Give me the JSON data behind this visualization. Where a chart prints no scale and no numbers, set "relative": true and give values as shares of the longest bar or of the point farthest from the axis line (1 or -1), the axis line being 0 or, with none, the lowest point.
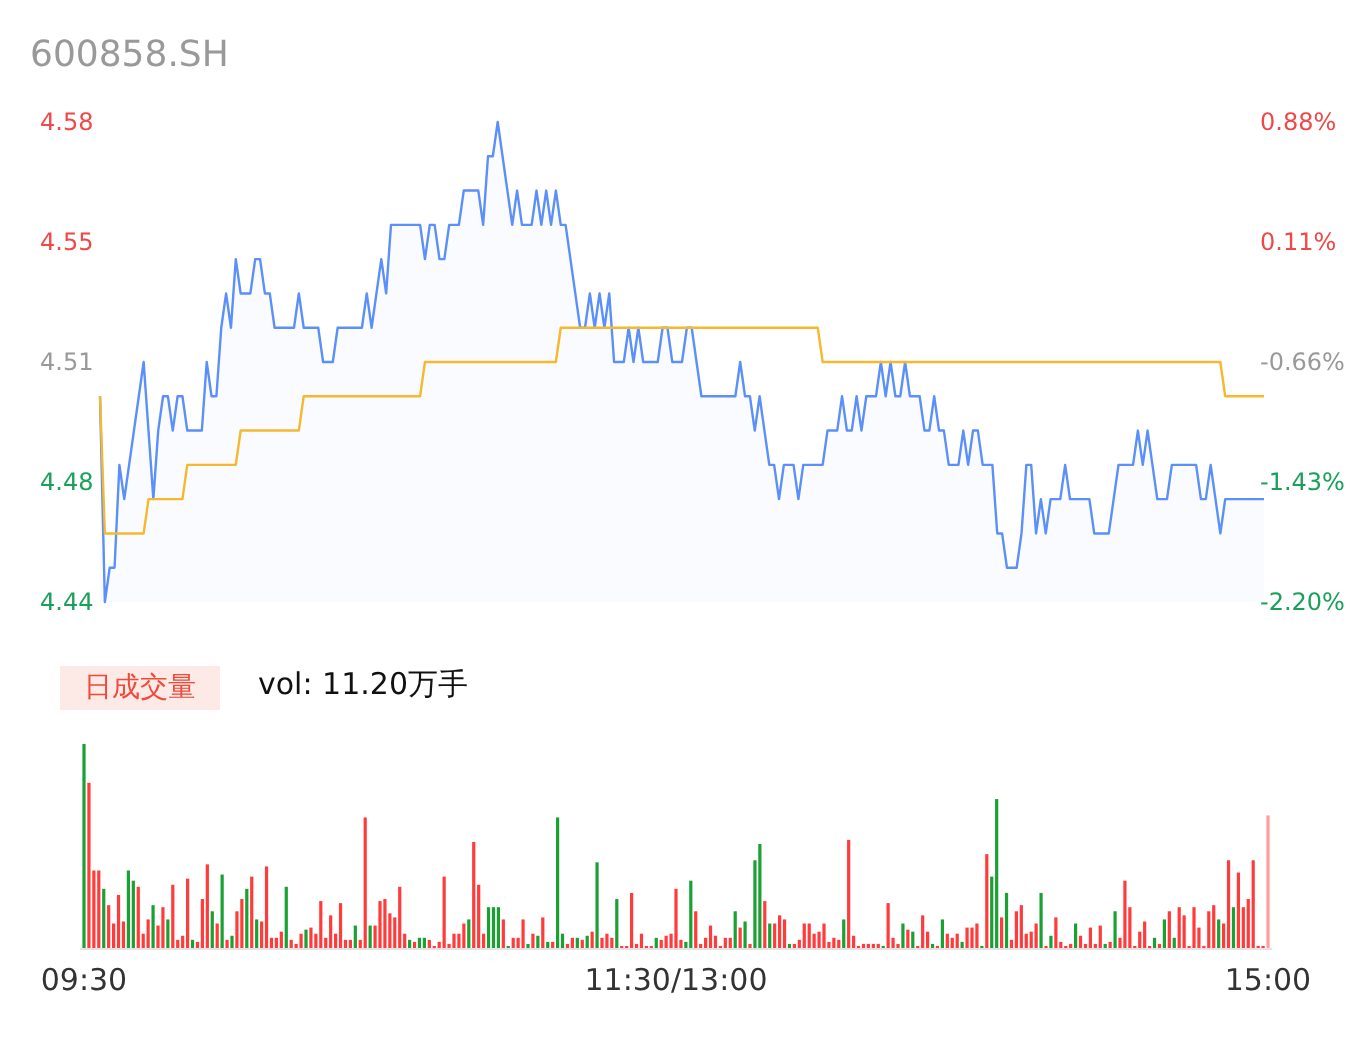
{
  "chart_data": [
    {
      "type": "area",
      "title": "600858.SH",
      "ylim": [
        4.44,
        4.58
      ],
      "yticks": [
        4.44,
        {
          "value": 4.475,
          "label": "4.48"
        },
        4.51,
        {
          "value": 4.545,
          "label": "4.55"
        },
        4.58
      ],
      "y2lim": [
        -2.2,
        0.88
      ],
      "y2ticks": [
        {
          "value": -2.2,
          "label": "-2.20%"
        },
        {
          "value": -1.43,
          "label": "-1.43%"
        },
        {
          "value": -0.66,
          "label": "-0.66%"
        },
        {
          "value": 0.11,
          "label": "0.11%"
        },
        {
          "value": 0.88,
          "label": "0.88%"
        }
      ],
      "tick_labels": "y",
      "categories": [
        null,
        null,
        null,
        null,
        null,
        null,
        null,
        null,
        null,
        null,
        null,
        null,
        null,
        null,
        null,
        null,
        null,
        null,
        null,
        null,
        null,
        null,
        null,
        null,
        null,
        null,
        null,
        null,
        null,
        null,
        null,
        null,
        null,
        null,
        null,
        null,
        null,
        null,
        null,
        null,
        null,
        null,
        null,
        null,
        null,
        null,
        null,
        null,
        null,
        null,
        null,
        null,
        null,
        null,
        null,
        null,
        null,
        null,
        null,
        null,
        null,
        null,
        null,
        null,
        null,
        null,
        null,
        null,
        null,
        null,
        null,
        null,
        null,
        null,
        null,
        null,
        null,
        null,
        null,
        null,
        null,
        null,
        null,
        null,
        null,
        null,
        null,
        null,
        null,
        null,
        null,
        null,
        null,
        null,
        null,
        null,
        null,
        null,
        null,
        null,
        null,
        null,
        null,
        null,
        null,
        null,
        null,
        null,
        null,
        null,
        null,
        null,
        null,
        null,
        null,
        null,
        null,
        null,
        null,
        null,
        null,
        null,
        null,
        null,
        null,
        null,
        null,
        null,
        null,
        null,
        null,
        null,
        null,
        null,
        null,
        null,
        null,
        null,
        null,
        null,
        null,
        null,
        null,
        null,
        null,
        null,
        null,
        null,
        null,
        null,
        null,
        null,
        null,
        null,
        null,
        null,
        null,
        null,
        null,
        null,
        null,
        null,
        null,
        null,
        null,
        null,
        null,
        null,
        null,
        null,
        null,
        null,
        null,
        null,
        null,
        null,
        null,
        null,
        null,
        null,
        null,
        null,
        null,
        null,
        null,
        null,
        null,
        null,
        null,
        null,
        null,
        null,
        null,
        null,
        null,
        null,
        null,
        null,
        null,
        null,
        null,
        null,
        null,
        null,
        null,
        null,
        null,
        null,
        null,
        null,
        null,
        null,
        null,
        null,
        null,
        null,
        null,
        null,
        null,
        null,
        null,
        null,
        null,
        null,
        null,
        null,
        null,
        null,
        null,
        null,
        null,
        null,
        null,
        null,
        null,
        null,
        null,
        null,
        null,
        null,
        null
      ],
      "series": [
        {
          "type": "area",
          "color": "#5b8ff9",
          "values": [
            4.5,
            4.44,
            4.45,
            4.45,
            4.48,
            4.47,
            4.48,
            4.49,
            4.5,
            4.51,
            4.49,
            4.47,
            4.49,
            4.5,
            4.5,
            4.49,
            4.5,
            4.5,
            4.49,
            4.49,
            4.49,
            4.49,
            4.51,
            4.5,
            4.5,
            4.52,
            4.53,
            4.52,
            4.54,
            4.53,
            4.53,
            4.53,
            4.54,
            4.54,
            4.53,
            4.53,
            4.52,
            4.52,
            4.52,
            4.52,
            4.52,
            4.53,
            4.52,
            4.52,
            4.52,
            4.52,
            4.51,
            4.51,
            4.51,
            4.52,
            4.52,
            4.52,
            4.52,
            4.52,
            4.52,
            4.53,
            4.52,
            4.53,
            4.54,
            4.53,
            4.55,
            4.55,
            4.55,
            4.55,
            4.55,
            4.55,
            4.55,
            4.54,
            4.55,
            4.55,
            4.54,
            4.54,
            4.55,
            4.55,
            4.55,
            4.56,
            4.56,
            4.56,
            4.56,
            4.55,
            4.57,
            4.57,
            4.58,
            4.57,
            4.56,
            4.55,
            4.56,
            4.55,
            4.55,
            4.55,
            4.56,
            4.55,
            4.56,
            4.55,
            4.56,
            4.55,
            4.55,
            4.54,
            4.53,
            4.52,
            4.52,
            4.53,
            4.52,
            4.53,
            4.52,
            4.53,
            4.51,
            4.51,
            4.51,
            4.52,
            4.51,
            4.52,
            4.51,
            4.51,
            4.51,
            4.51,
            4.52,
            4.52,
            4.51,
            4.51,
            4.51,
            4.52,
            4.52,
            4.51,
            4.5,
            4.5,
            4.5,
            4.5,
            4.5,
            4.5,
            4.5,
            4.5,
            4.51,
            4.5,
            4.5,
            4.49,
            4.5,
            4.49,
            4.48,
            4.48,
            4.47,
            4.48,
            4.48,
            4.48,
            4.47,
            4.48,
            4.48,
            4.48,
            4.48,
            4.48,
            4.49,
            4.49,
            4.49,
            4.5,
            4.49,
            4.49,
            4.5,
            4.49,
            4.5,
            4.5,
            4.5,
            4.51,
            4.5,
            4.51,
            4.5,
            4.5,
            4.51,
            4.5,
            4.5,
            4.5,
            4.49,
            4.49,
            4.5,
            4.49,
            4.49,
            4.48,
            4.48,
            4.48,
            4.49,
            4.48,
            4.49,
            4.49,
            4.48,
            4.48,
            4.48,
            4.46,
            4.46,
            4.45,
            4.45,
            4.45,
            4.46,
            4.48,
            4.48,
            4.46,
            4.47,
            4.46,
            4.47,
            4.47,
            4.47,
            4.48,
            4.47,
            4.47,
            4.47,
            4.47,
            4.47,
            4.46,
            4.46,
            4.46,
            4.46,
            4.47,
            4.48,
            4.48,
            4.48,
            4.48,
            4.49,
            4.48,
            4.49,
            4.48,
            4.47,
            4.47,
            4.47,
            4.48,
            4.48,
            4.48,
            4.48,
            4.48,
            4.48,
            4.47,
            4.47,
            4.48,
            4.47,
            4.46,
            4.47,
            4.47,
            4.47,
            4.47,
            4.47,
            4.47,
            4.47,
            4.47,
            4.47
          ]
        },
        {
          "type": "line",
          "color": "#f5b82e",
          "values": [
            4.5,
            4.46,
            4.46,
            4.46,
            4.46,
            4.46,
            4.46,
            4.46,
            4.46,
            4.46,
            4.47,
            4.47,
            4.47,
            4.47,
            4.47,
            4.47,
            4.47,
            4.47,
            4.48,
            4.48,
            4.48,
            4.48,
            4.48,
            4.48,
            4.48,
            4.48,
            4.48,
            4.48,
            4.48,
            4.49,
            4.49,
            4.49,
            4.49,
            4.49,
            4.49,
            4.49,
            4.49,
            4.49,
            4.49,
            4.49,
            4.49,
            4.49,
            4.5,
            4.5,
            4.5,
            4.5,
            4.5,
            4.5,
            4.5,
            4.5,
            4.5,
            4.5,
            4.5,
            4.5,
            4.5,
            4.5,
            4.5,
            4.5,
            4.5,
            4.5,
            4.5,
            4.5,
            4.5,
            4.5,
            4.5,
            4.5,
            4.5,
            4.51,
            4.51,
            4.51,
            4.51,
            4.51,
            4.51,
            4.51,
            4.51,
            4.51,
            4.51,
            4.51,
            4.51,
            4.51,
            4.51,
            4.51,
            4.51,
            4.51,
            4.51,
            4.51,
            4.51,
            4.51,
            4.51,
            4.51,
            4.51,
            4.51,
            4.51,
            4.51,
            4.51,
            4.52,
            4.52,
            4.52,
            4.52,
            4.52,
            4.52,
            4.52,
            4.52,
            4.52,
            4.52,
            4.52,
            4.52,
            4.52,
            4.52,
            4.52,
            4.52,
            4.52,
            4.52,
            4.52,
            4.52,
            4.52,
            4.52,
            4.52,
            4.52,
            4.52,
            4.52,
            4.52,
            4.52,
            4.52,
            4.52,
            4.52,
            4.52,
            4.52,
            4.52,
            4.52,
            4.52,
            4.52,
            4.52,
            4.52,
            4.52,
            4.52,
            4.52,
            4.52,
            4.52,
            4.52,
            4.52,
            4.52,
            4.52,
            4.52,
            4.52,
            4.52,
            4.52,
            4.52,
            4.52,
            4.51,
            4.51,
            4.51,
            4.51,
            4.51,
            4.51,
            4.51,
            4.51,
            4.51,
            4.51,
            4.51,
            4.51,
            4.51,
            4.51,
            4.51,
            4.51,
            4.51,
            4.51,
            4.51,
            4.51,
            4.51,
            4.51,
            4.51,
            4.51,
            4.51,
            4.51,
            4.51,
            4.51,
            4.51,
            4.51,
            4.51,
            4.51,
            4.51,
            4.51,
            4.51,
            4.51,
            4.51,
            4.51,
            4.51,
            4.51,
            4.51,
            4.51,
            4.51,
            4.51,
            4.51,
            4.51,
            4.51,
            4.51,
            4.51,
            4.51,
            4.51,
            4.51,
            4.51,
            4.51,
            4.51,
            4.51,
            4.51,
            4.51,
            4.51,
            4.51,
            4.51,
            4.51,
            4.51,
            4.51,
            4.51,
            4.51,
            4.51,
            4.51,
            4.51,
            4.51,
            4.51,
            4.51,
            4.51,
            4.51,
            4.51,
            4.51,
            4.51,
            4.51,
            4.51,
            4.51,
            4.51,
            4.51,
            4.51,
            4.5,
            4.5,
            4.5,
            4.5,
            4.5,
            4.5,
            4.5,
            4.5,
            4.5
          ]
        }
      ]
    },
    {
      "type": "bar",
      "title": "日成交量",
      "subtitle": "vol: 11.20万手",
      "relative": true,
      "categories": [
        "09:30",
        null,
        null,
        null,
        null,
        null,
        null,
        null,
        null,
        null,
        null,
        null,
        null,
        null,
        null,
        null,
        null,
        null,
        null,
        null,
        null,
        null,
        null,
        null,
        null,
        null,
        null,
        null,
        null,
        null,
        null,
        null,
        null,
        null,
        null,
        null,
        null,
        null,
        null,
        null,
        null,
        null,
        null,
        null,
        null,
        null,
        null,
        null,
        null,
        null,
        null,
        null,
        null,
        null,
        null,
        null,
        null,
        null,
        null,
        null,
        null,
        null,
        null,
        null,
        null,
        null,
        null,
        null,
        null,
        null,
        null,
        null,
        null,
        null,
        null,
        null,
        null,
        null,
        null,
        null,
        null,
        null,
        null,
        null,
        null,
        null,
        null,
        null,
        null,
        null,
        null,
        null,
        null,
        null,
        null,
        null,
        null,
        null,
        null,
        null,
        null,
        null,
        null,
        null,
        null,
        null,
        null,
        null,
        null,
        null,
        null,
        null,
        null,
        null,
        null,
        null,
        null,
        null,
        null,
        null,
        "11:30/13:00",
        null,
        null,
        null,
        null,
        null,
        null,
        null,
        null,
        null,
        null,
        null,
        null,
        null,
        null,
        null,
        null,
        null,
        null,
        null,
        null,
        null,
        null,
        null,
        null,
        null,
        null,
        null,
        null,
        null,
        null,
        null,
        null,
        null,
        null,
        null,
        null,
        null,
        null,
        null,
        null,
        null,
        null,
        null,
        null,
        null,
        null,
        null,
        null,
        null,
        null,
        null,
        null,
        null,
        null,
        null,
        null,
        null,
        null,
        null,
        null,
        null,
        null,
        null,
        null,
        null,
        null,
        null,
        null,
        null,
        null,
        null,
        null,
        null,
        null,
        null,
        null,
        null,
        null,
        null,
        null,
        null,
        null,
        null,
        null,
        null,
        null,
        null,
        null,
        null,
        null,
        null,
        null,
        null,
        null,
        null,
        null,
        null,
        null,
        null,
        null,
        null,
        null,
        null,
        null,
        null,
        null,
        null,
        null,
        null,
        null,
        null,
        null,
        null,
        null,
        null,
        null,
        null,
        null,
        null,
        "15:00"
      ],
      "values": [
        1.0,
        0.81,
        0.38,
        0.38,
        0.29,
        0.21,
        0.12,
        0.26,
        0.13,
        0.38,
        0.33,
        0.3,
        0.07,
        0.14,
        0.21,
        0.11,
        0.2,
        0.14,
        0.31,
        0.04,
        0.06,
        0.34,
        0.04,
        0.03,
        0.24,
        0.41,
        0.18,
        0.12,
        0.36,
        0.04,
        0.06,
        0.18,
        0.24,
        0.29,
        0.35,
        0.14,
        0.13,
        0.4,
        0.05,
        0.05,
        0.08,
        0.3,
        0.04,
        0.02,
        0.07,
        0.09,
        0.1,
        0.07,
        0.23,
        0.05,
        0.16,
        0.07,
        0.22,
        0.04,
        0.04,
        0.11,
        0.04,
        0.64,
        0.11,
        0.11,
        0.23,
        0.24,
        0.17,
        0.15,
        0.3,
        0.07,
        0.04,
        0.03,
        0.05,
        0.05,
        0.04,
        0.01,
        0.03,
        0.35,
        0.02,
        0.07,
        0.07,
        0.12,
        0.14,
        0.52,
        0.31,
        0.07,
        0.2,
        0.2,
        0.2,
        0.14,
        0.01,
        0.05,
        0.05,
        0.14,
        0.02,
        0.07,
        0.06,
        0.15,
        0.03,
        0.03,
        0.64,
        0.07,
        0.02,
        0.05,
        0.05,
        0.04,
        0.06,
        0.08,
        0.42,
        0.05,
        0.07,
        0.05,
        0.24,
        0.01,
        0.01,
        0.27,
        0.02,
        0.07,
        0.01,
        0.01,
        0.05,
        0.04,
        0.06,
        0.07,
        0.29,
        0.04,
        0.03,
        0.33,
        0.18,
        0.02,
        0.05,
        0.11,
        0.06,
        0.01,
        0.05,
        0.05,
        0.18,
        0.1,
        0.13,
        0.02,
        0.43,
        0.51,
        0.23,
        0.12,
        0.12,
        0.16,
        0.14,
        0.02,
        0.02,
        0.04,
        0.12,
        0.12,
        0.07,
        0.08,
        0.12,
        0.03,
        0.05,
        0.04,
        0.14,
        0.53,
        0.06,
        0.01,
        0.02,
        0.02,
        0.02,
        0.02,
        0.01,
        0.22,
        0.05,
        0.02,
        0.12,
        0.09,
        0.08,
        0.01,
        0.16,
        0.08,
        0.02,
        0.01,
        0.14,
        0.07,
        0.05,
        0.07,
        0.03,
        0.1,
        0.1,
        0.12,
        0.01,
        0.46,
        0.35,
        0.73,
        0.15,
        0.27,
        0.04,
        0.18,
        0.21,
        0.07,
        0.08,
        0.12,
        0.27,
        0.01,
        0.06,
        0.15,
        0.03,
        0.01,
        0.02,
        0.12,
        0.06,
        0.02,
        0.1,
        0.02,
        0.11,
        0.02,
        0.03,
        0.18,
        0.05,
        0.33,
        0.2,
        0.01,
        0.08,
        0.13,
        0.01,
        0.05,
        0.02,
        0.14,
        0.18,
        0.05,
        0.2,
        0.16,
        0.01,
        0.2,
        0.1,
        0.01,
        0.18,
        0.21,
        0.14,
        0.12,
        0.43,
        0.2,
        0.37,
        0.2,
        0.24,
        0.43,
        0.01,
        0.01,
        0.65
      ],
      "colors": [
        "#1aa033",
        "#ff3b3b",
        "#ff3b3b",
        "#ff3b3b",
        "#1aa033",
        "#ff3b3b",
        "#ff3b3b",
        "#ff3b3b",
        "#ff3b3b",
        "#1aa033",
        "#1aa033",
        "#ff3b3b",
        "#ff3b3b",
        "#ff3b3b",
        "#1aa033",
        "#ff3b3b",
        "#ff3b3b",
        "#1aa033",
        "#ff3b3b",
        "#ff3b3b",
        "#ff3b3b",
        "#ff3b3b",
        "#1aa033",
        "#ff3b3b",
        "#ff3b3b",
        "#ff3b3b",
        "#1aa033",
        "#ff3b3b",
        "#1aa033",
        "#ff3b3b",
        "#1aa033",
        "#ff3b3b",
        "#ff3b3b",
        "#1aa033",
        "#ff3b3b",
        "#1aa033",
        "#ff3b3b",
        "#ff3b3b",
        "#ff3b3b",
        "#ff3b3b",
        "#ff3b3b",
        "#1aa033",
        "#ff3b3b",
        "#ff3b3b",
        "#ff3b3b",
        "#1aa033",
        "#ff3b3b",
        "#ff3b3b",
        "#ff3b3b",
        "#ff3b3b",
        "#ff3b3b",
        "#ff3b3b",
        "#ff3b3b",
        "#ff3b3b",
        "#ff3b3b",
        "#1aa033",
        "#ff3b3b",
        "#ff3b3b",
        "#1aa033",
        "#ff3b3b",
        "#ff3b3b",
        "#ff3b3b",
        "#ff3b3b",
        "#ff3b3b",
        "#ff3b3b",
        "#ff3b3b",
        "#1aa033",
        "#ff3b3b",
        "#1aa033",
        "#1aa033",
        "#ff3b3b",
        "#ff3b3b",
        "#ff3b3b",
        "#ff3b3b",
        "#ff3b3b",
        "#ff3b3b",
        "#ff3b3b",
        "#ff3b3b",
        "#1aa033",
        "#ff3b3b",
        "#ff3b3b",
        "#ff3b3b",
        "#1aa033",
        "#1aa033",
        "#1aa033",
        "#ff3b3b",
        "#1aa033",
        "#ff3b3b",
        "#ff3b3b",
        "#ff3b3b",
        "#1aa033",
        "#ff3b3b",
        "#1aa033",
        "#ff3b3b",
        "#1aa033",
        "#ff3b3b",
        "#1aa033",
        "#1aa033",
        "#ff3b3b",
        "#ff3b3b",
        "#1aa033",
        "#ff3b3b",
        "#1aa033",
        "#ff3b3b",
        "#1aa033",
        "#ff3b3b",
        "#ff3b3b",
        "#ff3b3b",
        "#1aa033",
        "#ff3b3b",
        "#ff3b3b",
        "#ff3b3b",
        "#ff3b3b",
        "#ff3b3b",
        "#ff3b3b",
        "#ff3b3b",
        "#1aa033",
        "#ff3b3b",
        "#ff3b3b",
        "#ff3b3b",
        "#ff3b3b",
        "#ff3b3b",
        "#1aa033",
        "#1aa033",
        "#ff3b3b",
        "#ff3b3b",
        "#ff3b3b",
        "#ff3b3b",
        "#ff3b3b",
        "#ff3b3b",
        "#ff3b3b",
        "#ff3b3b",
        "#1aa033",
        "#ff3b3b",
        "#1aa033",
        "#ff3b3b",
        "#1aa033",
        "#1aa033",
        "#ff3b3b",
        "#1aa033",
        "#ff3b3b",
        "#ff3b3b",
        "#ff3b3b",
        "#1aa033",
        "#ff3b3b",
        "#ff3b3b",
        "#ff3b3b",
        "#ff3b3b",
        "#ff3b3b",
        "#ff3b3b",
        "#ff3b3b",
        "#ff3b3b",
        "#ff3b3b",
        "#ff3b3b",
        "#1aa033",
        "#ff3b3b",
        "#ff3b3b",
        "#ff3b3b",
        "#ff3b3b",
        "#ff3b3b",
        "#ff3b3b",
        "#ff3b3b",
        "#1aa033",
        "#ff3b3b",
        "#ff3b3b",
        "#ff3b3b",
        "#1aa033",
        "#ff3b3b",
        "#1aa033",
        "#ff3b3b",
        "#ff3b3b",
        "#ff3b3b",
        "#1aa033",
        "#ff3b3b",
        "#1aa033",
        "#ff3b3b",
        "#ff3b3b",
        "#ff3b3b",
        "#1aa033",
        "#ff3b3b",
        "#ff3b3b",
        "#ff3b3b",
        "#1aa033",
        "#ff3b3b",
        "#1aa033",
        "#1aa033",
        "#ff3b3b",
        "#1aa033",
        "#ff3b3b",
        "#ff3b3b",
        "#ff3b3b",
        "#ff3b3b",
        "#ff3b3b",
        "#ff3b3b",
        "#1aa033",
        "#ff3b3b",
        "#1aa033",
        "#ff3b3b",
        "#ff3b3b",
        "#ff3b3b",
        "#ff3b3b",
        "#1aa033",
        "#ff3b3b",
        "#ff3b3b",
        "#ff3b3b",
        "#ff3b3b",
        "#ff3b3b",
        "#1aa033",
        "#ff3b3b",
        "#1aa033",
        "#ff3b3b",
        "#ff3b3b",
        "#ff3b3b",
        "#ff3b3b",
        "#ff3b3b",
        "#ff3b3b",
        "#ff3b3b",
        "#1aa033",
        "#ff3b3b",
        "#1aa033",
        "#ff3b3b",
        "#1aa033",
        "#ff3b3b",
        "#ff3b3b",
        "#ff3b3b",
        "#ff3b3b",
        "#ff3b3b",
        "#ff3b3b",
        "#ff3b3b",
        "#ff3b3b",
        "#1aa033",
        "#ff3b3b",
        "#ff3b3b",
        "#1aa033",
        "#ff3b3b",
        "#ff3b3b",
        "#ff3b3b",
        "#ff3b3b",
        "#ff3b3b",
        "#ff3b3b",
        "#ff9c9c"
      ]
    }
  ]
}
